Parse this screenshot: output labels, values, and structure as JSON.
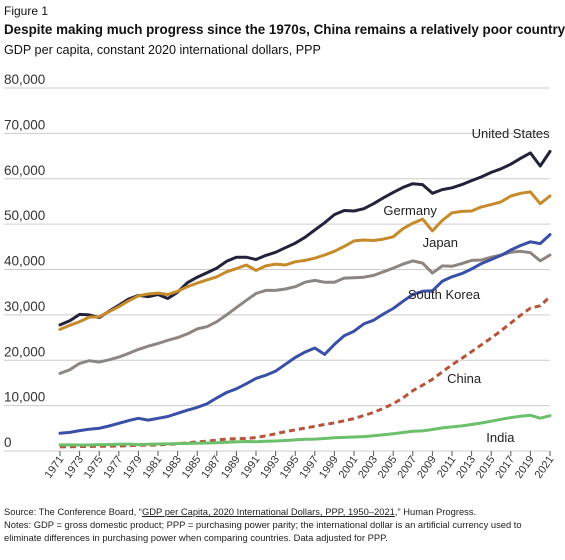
{
  "figure_label": "Figure 1",
  "source": {
    "prefix": "Source: The Conference Board, “",
    "link_text": "GDP per Capita, 2020 International Dollars, PPP, 1950–2021",
    "suffix": ",” Human Progress.",
    "notes": "Notes: GDP = gross domestic product; PPP = purchasing power parity; the international dollar is an artificial currency used to eliminate differences in purchasing power when comparing countries. Data adjusted for PPP."
  },
  "colors": {
    "united_states": "#22223a",
    "germany": "#c68a2a",
    "japan": "#8d8580",
    "south_korea": "#3a4fa8",
    "china": "#b5553a",
    "india": "#6cc06c",
    "grid": "#cccccc"
  },
  "chart_data": {
    "type": "line",
    "title": "Despite making much progress since the 1970s, China remains a relatively poor country",
    "subtitle": "GDP per capita, constant 2020 international dollars, PPP",
    "xlabel": "",
    "ylabel": "",
    "ylim": [
      0,
      80000
    ],
    "y_ticks": [
      "0",
      "10,000",
      "20,000",
      "30,000",
      "40,000",
      "50,000",
      "60,000",
      "70,000",
      "80,000"
    ],
    "y_tick_values": [
      0,
      10000,
      20000,
      30000,
      40000,
      50000,
      60000,
      70000,
      80000
    ],
    "x_ticks": [
      "1971",
      "1973",
      "1975",
      "1977",
      "1979",
      "1981",
      "1983",
      "1985",
      "1987",
      "1989",
      "1991",
      "1993",
      "1995",
      "1997",
      "1999",
      "2001",
      "2003",
      "2005",
      "2007",
      "2009",
      "2011",
      "2013",
      "2015",
      "2017",
      "2019",
      "2021"
    ],
    "x_tick_values": [
      1971,
      1973,
      1975,
      1977,
      1979,
      1981,
      1983,
      1985,
      1987,
      1989,
      1991,
      1993,
      1995,
      1997,
      1999,
      2001,
      2003,
      2005,
      2007,
      2009,
      2011,
      2013,
      2015,
      2017,
      2019,
      2021
    ],
    "grid": "horizontal",
    "legend": "direct labels",
    "x": [
      1971,
      1972,
      1973,
      1974,
      1975,
      1976,
      1977,
      1978,
      1979,
      1980,
      1981,
      1982,
      1983,
      1984,
      1985,
      1986,
      1987,
      1988,
      1989,
      1990,
      1991,
      1992,
      1993,
      1994,
      1995,
      1996,
      1997,
      1998,
      1999,
      2000,
      2001,
      2002,
      2003,
      2004,
      2005,
      2006,
      2007,
      2008,
      2009,
      2010,
      2011,
      2012,
      2013,
      2014,
      2015,
      2016,
      2017,
      2018,
      2019,
      2020,
      2021
    ],
    "series": [
      {
        "name": "United States",
        "color_key": "united_states",
        "style": "solid",
        "values": [
          27800,
          28700,
          30100,
          30000,
          29400,
          30800,
          32100,
          33500,
          34300,
          34000,
          34500,
          33600,
          35000,
          37100,
          38300,
          39300,
          40300,
          41800,
          42700,
          42700,
          42200,
          43100,
          43800,
          44800,
          45800,
          47100,
          48700,
          50300,
          52100,
          53000,
          52900,
          53400,
          54500,
          55800,
          57000,
          58100,
          58900,
          58700,
          56800,
          57600,
          58000,
          58700,
          59600,
          60400,
          61400,
          62200,
          63200,
          64500,
          65700,
          62800,
          66000
        ]
      },
      {
        "name": "Germany",
        "color_key": "germany",
        "style": "solid",
        "values": [
          26800,
          27700,
          28500,
          29500,
          29600,
          30700,
          31800,
          33100,
          34200,
          34600,
          34800,
          34500,
          35200,
          36200,
          37000,
          37700,
          38400,
          39500,
          40200,
          41000,
          39800,
          40800,
          41200,
          41000,
          41700,
          42000,
          42500,
          43200,
          44000,
          45100,
          46300,
          46500,
          46400,
          46700,
          47200,
          49000,
          50200,
          51100,
          48500,
          50800,
          52500,
          52800,
          52900,
          53800,
          54300,
          54900,
          56200,
          56800,
          57100,
          54500,
          56200
        ]
      },
      {
        "name": "Japan",
        "color_key": "japan",
        "style": "solid",
        "values": [
          17100,
          17900,
          19300,
          19900,
          19600,
          20100,
          20700,
          21500,
          22400,
          23100,
          23700,
          24400,
          25000,
          25800,
          26900,
          27400,
          28500,
          30000,
          31600,
          33200,
          34700,
          35400,
          35400,
          35700,
          36200,
          37200,
          37600,
          37200,
          37200,
          38100,
          38200,
          38300,
          38700,
          39500,
          40300,
          41200,
          41900,
          41400,
          39200,
          40800,
          40700,
          41300,
          42000,
          42100,
          42700,
          43200,
          43800,
          44000,
          43700,
          41900,
          43200
        ]
      },
      {
        "name": "South Korea",
        "color_key": "south_korea",
        "style": "solid",
        "values": [
          3900,
          4100,
          4500,
          4800,
          5000,
          5500,
          6100,
          6700,
          7200,
          6800,
          7200,
          7600,
          8300,
          9000,
          9600,
          10400,
          11700,
          12900,
          13700,
          14800,
          16000,
          16700,
          17600,
          19100,
          20600,
          21800,
          22700,
          21300,
          23500,
          25400,
          26400,
          28000,
          28800,
          30200,
          31400,
          33000,
          34500,
          35200,
          35300,
          37400,
          38400,
          39100,
          40100,
          41300,
          42200,
          43100,
          44300,
          45300,
          46100,
          45700,
          47700
        ]
      },
      {
        "name": "China",
        "color_key": "china",
        "style": "dashed",
        "values": [
          900,
          950,
          1000,
          1000,
          1050,
          1050,
          1100,
          1200,
          1250,
          1300,
          1350,
          1450,
          1600,
          1800,
          2000,
          2150,
          2400,
          2650,
          2700,
          2750,
          2950,
          3350,
          3800,
          4250,
          4650,
          5050,
          5450,
          5850,
          6200,
          6650,
          7150,
          7800,
          8500,
          9400,
          10400,
          11700,
          13300,
          14500,
          15800,
          17400,
          19000,
          20400,
          21900,
          23400,
          24900,
          26500,
          28200,
          29900,
          31500,
          32000,
          34000
        ]
      },
      {
        "name": "India",
        "color_key": "india",
        "style": "solid",
        "values": [
          1350,
          1350,
          1330,
          1330,
          1400,
          1400,
          1470,
          1520,
          1420,
          1480,
          1540,
          1570,
          1640,
          1670,
          1720,
          1770,
          1800,
          1910,
          2010,
          2090,
          2060,
          2130,
          2200,
          2310,
          2440,
          2570,
          2630,
          2750,
          2920,
          2990,
          3080,
          3170,
          3350,
          3560,
          3810,
          4070,
          4350,
          4420,
          4730,
          5090,
          5320,
          5540,
          5830,
          6160,
          6560,
          6980,
          7360,
          7680,
          7870,
          7230,
          7790
        ]
      }
    ],
    "series_labels": [
      {
        "text": "United States",
        "ref_year": 2013,
        "ref_value": 69000
      },
      {
        "text": "Germany",
        "ref_year": 2004,
        "ref_value": 52000
      },
      {
        "text": "Japan",
        "ref_year": 2008,
        "ref_value": 45000
      },
      {
        "text": "South Korea",
        "ref_year": 2006.5,
        "ref_value": 33500
      },
      {
        "text": "China",
        "ref_year": 2010.5,
        "ref_value": 15000
      },
      {
        "text": "India",
        "ref_year": 2014.5,
        "ref_value": 2000
      }
    ]
  }
}
